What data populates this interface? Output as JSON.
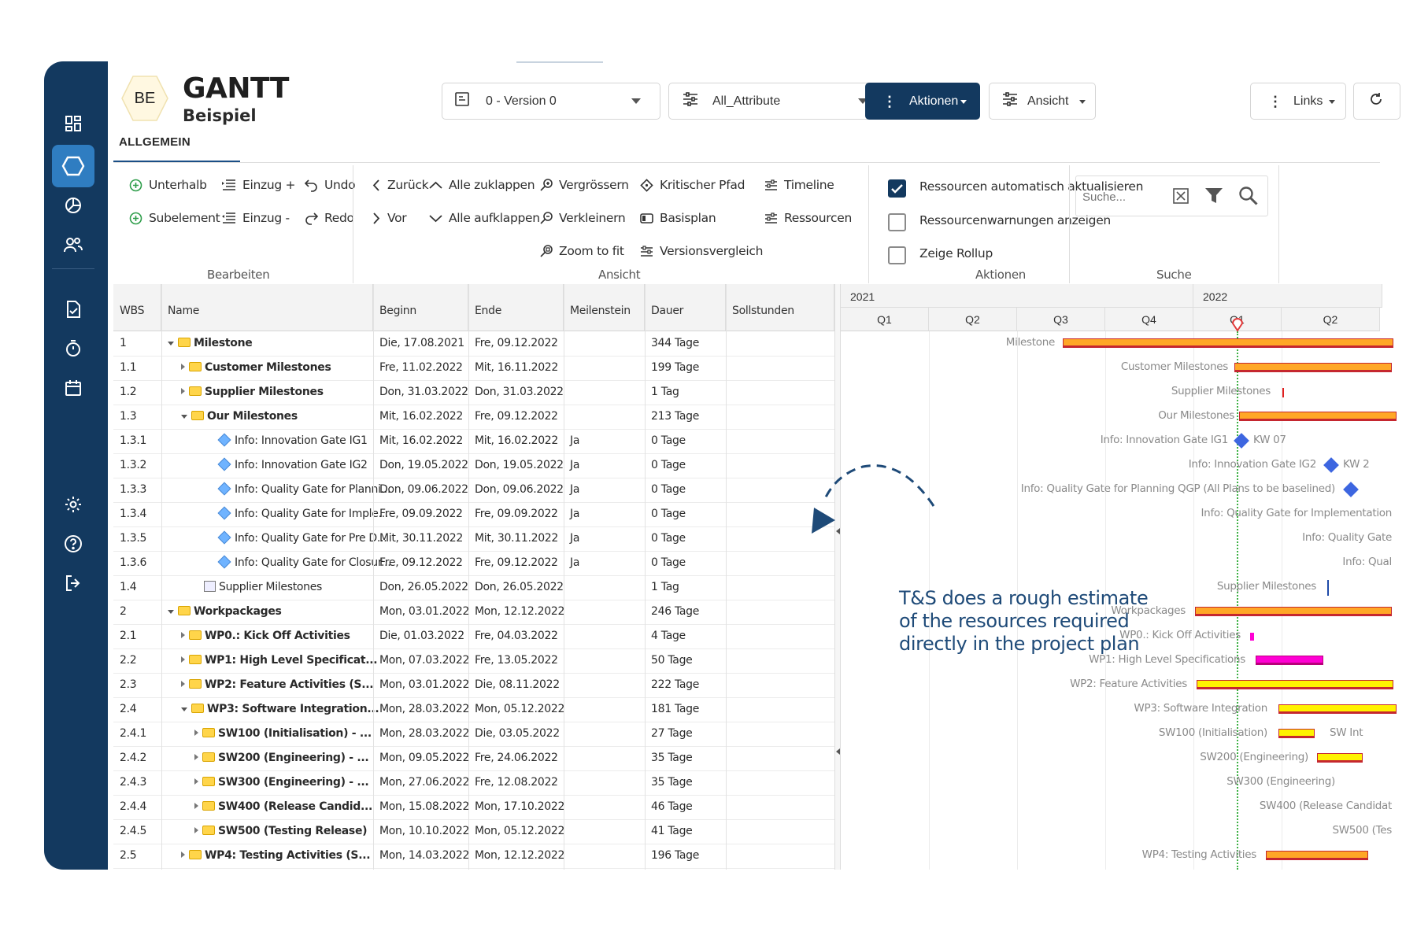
{
  "app": {
    "badge": "BE",
    "title": "GANTT",
    "subtitle": "Beispiel"
  },
  "header": {
    "version_select": "0 - Version 0",
    "attribute_select": "All_Attribute",
    "aktionen_label": "Aktionen",
    "ansicht_label": "Ansicht",
    "links_label": "Links"
  },
  "tabs": [
    {
      "label": "ALLGEMEIN",
      "active": true
    }
  ],
  "toolbar": {
    "bearbeiten": {
      "group_label": "Bearbeiten",
      "unterhalb": "Unterhalb",
      "subelement": "Subelement",
      "einzug_plus": "Einzug +",
      "einzug_minus": "Einzug -",
      "undo": "Undo",
      "redo": "Redo"
    },
    "ansicht": {
      "group_label": "Ansicht",
      "zurueck": "Zurück",
      "vor": "Vor",
      "alle_zuklappen": "Alle zuklappen",
      "alle_aufklappen": "Alle aufklappen",
      "vergroessern": "Vergrössern",
      "verkleinern": "Verkleinern",
      "zoom_to_fit": "Zoom to fit",
      "kritischer_pfad": "Kritischer Pfad",
      "basisplan": "Basisplan",
      "versionsvergleich": "Versionsvergleich",
      "timeline": "Timeline",
      "ressourcen": "Ressourcen"
    },
    "aktionen": {
      "group_label": "Aktionen",
      "opt1": "Ressourcen automatisch aktualisieren",
      "opt1_checked": true,
      "opt2": "Ressourcenwarnungen anzeigen",
      "opt2_checked": false,
      "opt3": "Zeige Rollup",
      "opt3_checked": false
    },
    "suche": {
      "group_label": "Suche",
      "placeholder": "Suche..."
    }
  },
  "table": {
    "columns": [
      "WBS",
      "Name",
      "Beginn",
      "Ende",
      "Meilenstein",
      "Dauer",
      "Sollstunden"
    ],
    "rows": [
      {
        "wbs": "1",
        "name": "Milestone",
        "beginn": "Die, 17.08.2021",
        "ende": "Fre, 09.12.2022",
        "ms": "",
        "dauer": "344 Tage"
      },
      {
        "wbs": "1.1",
        "name": "Customer Milestones",
        "beginn": "Fre, 11.02.2022",
        "ende": "Mit, 16.11.2022",
        "ms": "",
        "dauer": "199 Tage"
      },
      {
        "wbs": "1.2",
        "name": "Supplier Milestones",
        "beginn": "Don, 31.03.2022",
        "ende": "Don, 31.03.2022",
        "ms": "",
        "dauer": "1 Tag"
      },
      {
        "wbs": "1.3",
        "name": "Our Milestones",
        "beginn": "Mit, 16.02.2022",
        "ende": "Fre, 09.12.2022",
        "ms": "",
        "dauer": "213 Tage"
      },
      {
        "wbs": "1.3.1",
        "name": "Info: Innovation Gate IG1",
        "beginn": "Mit, 16.02.2022",
        "ende": "Mit, 16.02.2022",
        "ms": "Ja",
        "dauer": "0 Tage"
      },
      {
        "wbs": "1.3.2",
        "name": "Info: Innovation Gate IG2",
        "beginn": "Don, 19.05.2022",
        "ende": "Don, 19.05.2022",
        "ms": "Ja",
        "dauer": "0 Tage"
      },
      {
        "wbs": "1.3.3",
        "name": "Info: Quality Gate for Planni...",
        "beginn": "Don, 09.06.2022",
        "ende": "Don, 09.06.2022",
        "ms": "Ja",
        "dauer": "0 Tage"
      },
      {
        "wbs": "1.3.4",
        "name": "Info: Quality Gate for Imple...",
        "beginn": "Fre, 09.09.2022",
        "ende": "Fre, 09.09.2022",
        "ms": "Ja",
        "dauer": "0 Tage"
      },
      {
        "wbs": "1.3.5",
        "name": "Info: Quality Gate for Pre D...",
        "beginn": "Mit, 30.11.2022",
        "ende": "Mit, 30.11.2022",
        "ms": "Ja",
        "dauer": "0 Tage"
      },
      {
        "wbs": "1.3.6",
        "name": "Info: Quality Gate for Closur...",
        "beginn": "Fre, 09.12.2022",
        "ende": "Fre, 09.12.2022",
        "ms": "Ja",
        "dauer": "0 Tage"
      },
      {
        "wbs": "1.4",
        "name": "Supplier Milestones",
        "beginn": "Don, 26.05.2022",
        "ende": "Don, 26.05.2022",
        "ms": "",
        "dauer": "1 Tag"
      },
      {
        "wbs": "2",
        "name": "Workpackages",
        "beginn": "Mon, 03.01.2022",
        "ende": "Mon, 12.12.2022",
        "ms": "",
        "dauer": "246 Tage"
      },
      {
        "wbs": "2.1",
        "name": "WP0.: Kick Off Activities",
        "beginn": "Die, 01.03.2022",
        "ende": "Fre, 04.03.2022",
        "ms": "",
        "dauer": "4 Tage"
      },
      {
        "wbs": "2.2",
        "name": "WP1: High Level Specificat...",
        "beginn": "Mon, 07.03.2022",
        "ende": "Fre, 13.05.2022",
        "ms": "",
        "dauer": "50 Tage"
      },
      {
        "wbs": "2.3",
        "name": "WP2: Feature Activities (S...",
        "beginn": "Mon, 03.01.2022",
        "ende": "Die, 08.11.2022",
        "ms": "",
        "dauer": "222 Tage"
      },
      {
        "wbs": "2.4",
        "name": "WP3: Software Integration...",
        "beginn": "Mon, 28.03.2022",
        "ende": "Mon, 05.12.2022",
        "ms": "",
        "dauer": "181 Tage"
      },
      {
        "wbs": "2.4.1",
        "name": "SW100 (Initialisation) - ...",
        "beginn": "Mon, 28.03.2022",
        "ende": "Die, 03.05.2022",
        "ms": "",
        "dauer": "27 Tage"
      },
      {
        "wbs": "2.4.2",
        "name": "SW200 (Engineering) - ...",
        "beginn": "Mon, 09.05.2022",
        "ende": "Fre, 24.06.2022",
        "ms": "",
        "dauer": "35 Tage"
      },
      {
        "wbs": "2.4.3",
        "name": "SW300 (Engineering) - ...",
        "beginn": "Mon, 27.06.2022",
        "ende": "Fre, 12.08.2022",
        "ms": "",
        "dauer": "35 Tage"
      },
      {
        "wbs": "2.4.4",
        "name": "SW400 (Release Candid...",
        "beginn": "Mon, 15.08.2022",
        "ende": "Mon, 17.10.2022",
        "ms": "",
        "dauer": "46 Tage"
      },
      {
        "wbs": "2.4.5",
        "name": "SW500 (Testing Release)",
        "beginn": "Mon, 10.10.2022",
        "ende": "Mon, 05.12.2022",
        "ms": "",
        "dauer": "41 Tage"
      },
      {
        "wbs": "2.5",
        "name": "WP4: Testing Activities (S...",
        "beginn": "Mon, 14.03.2022",
        "ende": "Mon, 12.12.2022",
        "ms": "",
        "dauer": "196 Tage"
      }
    ]
  },
  "gantt": {
    "years": [
      "2021",
      "2022"
    ],
    "quarters": [
      "Q1",
      "Q2",
      "Q3",
      "Q4",
      "Q1",
      "Q2"
    ],
    "labels": [
      "Milestone",
      "Customer Milestones",
      "Supplier Milestones",
      "Our Milestones",
      "Info: Innovation Gate IG1",
      "Info: Innovation Gate IG2",
      "Info: Quality Gate for Planning QGP (All Plans to be baselined)",
      "Info: Quality Gate for Implementation",
      "Info: Quality Gate",
      "Info: Qual",
      "Supplier Milestones",
      "Workpackages",
      "WP0.: Kick Off Activities",
      "WP1: High Level Specifications",
      "WP2: Feature Activities",
      "WP3: Software Integration",
      "SW100 (Initialisation)",
      "SW200 (Engineering)",
      "SW300 (Engineering)",
      "SW400 (Release Candidat",
      "SW500 (Tes",
      "WP4: Testing Activities"
    ],
    "milestone_tags": [
      "KW 07",
      "KW 2"
    ],
    "bar_tags": [
      "SW Int"
    ],
    "colors": {
      "summary": "#ffa726",
      "task": "#fff200",
      "critical": "#ff00d4",
      "milestone": "#3d66e0",
      "border": "#c5272f",
      "today": "#3cb043"
    }
  },
  "annotation": [
    "T&S does a rough estimate",
    "of the resources required",
    "directly in the project plan"
  ]
}
